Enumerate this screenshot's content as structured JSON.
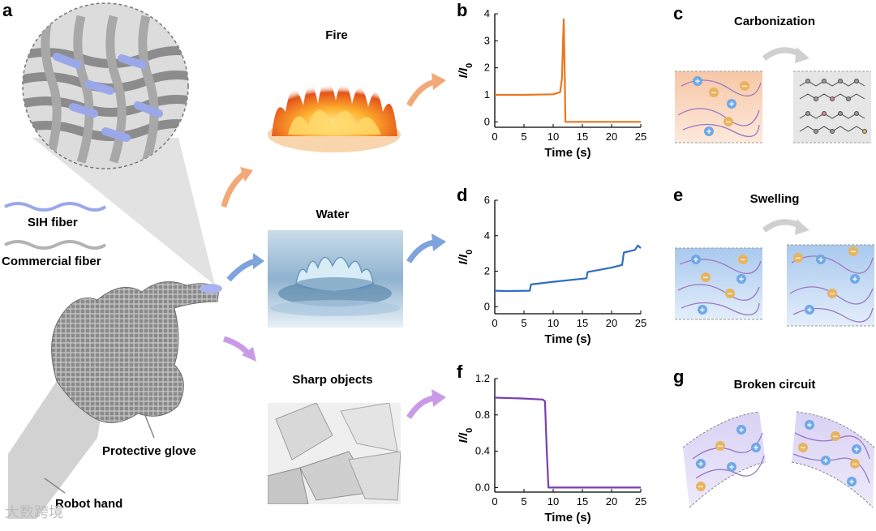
{
  "panel_letters": {
    "a": "a",
    "b": "b",
    "c": "c",
    "d": "d",
    "e": "e",
    "f": "f",
    "g": "g"
  },
  "panel_a": {
    "sih_fiber": "SIH fiber",
    "commercial_fiber": "Commercial fiber",
    "protective_glove": "Protective glove",
    "robot_hand": "Robot hand"
  },
  "scenarios": {
    "fire": "Fire",
    "water": "Water",
    "sharp": "Sharp objects"
  },
  "mechanisms": {
    "carbonization": "Carbonization",
    "swelling": "Swelling",
    "broken_circuit": "Broken circuit"
  },
  "colors": {
    "fire": "#e8771e",
    "water": "#2f6fc0",
    "sharp": "#7a3fb0",
    "fire_arrow": "#f2a877",
    "water_arrow": "#7fa3dc",
    "sharp_arrow": "#c99be6",
    "plus_ion": "#6fa8e8",
    "minus_ion": "#e8b460"
  },
  "watermark": "大数跨境",
  "chart_data": [
    {
      "panel": "b",
      "type": "line",
      "title": "",
      "xlabel": "Time (s)",
      "ylabel": "I/I0",
      "xlim": [
        0,
        25
      ],
      "ylim": [
        -0.2,
        4
      ],
      "xticks": [
        0,
        5,
        10,
        15,
        20,
        25
      ],
      "yticks": [
        0,
        1,
        2,
        3,
        4
      ],
      "series": [
        {
          "name": "Fire",
          "x": [
            0,
            5,
            10,
            11.2,
            11.5,
            11.7,
            11.8,
            12.0,
            12.1,
            15,
            20,
            25
          ],
          "y": [
            1.0,
            1.0,
            1.02,
            1.1,
            1.6,
            3.0,
            3.8,
            1.5,
            0.0,
            0.0,
            0.0,
            0.0
          ]
        }
      ]
    },
    {
      "panel": "d",
      "type": "line",
      "title": "",
      "xlabel": "Time (s)",
      "ylabel": "I/I0",
      "xlim": [
        0,
        25
      ],
      "ylim": [
        -0.4,
        6
      ],
      "xticks": [
        0,
        5,
        10,
        15,
        20,
        25
      ],
      "yticks": [
        0,
        2,
        4,
        6
      ],
      "series": [
        {
          "name": "Water",
          "x": [
            0,
            2,
            6,
            6.2,
            10,
            15.7,
            15.9,
            20,
            21.8,
            22.1,
            24,
            24.5,
            25
          ],
          "y": [
            0.9,
            0.88,
            0.9,
            1.25,
            1.4,
            1.6,
            1.95,
            2.2,
            2.35,
            3.05,
            3.2,
            3.45,
            3.3
          ]
        }
      ]
    },
    {
      "panel": "f",
      "type": "line",
      "title": "",
      "xlabel": "Time (s)",
      "ylabel": "I/I0",
      "xlim": [
        0,
        25
      ],
      "ylim": [
        -0.05,
        1.2
      ],
      "xticks": [
        0,
        5,
        10,
        15,
        20,
        25
      ],
      "yticks": [
        0.0,
        0.4,
        0.8,
        1.2
      ],
      "ytick_labels": [
        "0.0",
        "0.4",
        "0.8",
        "1.2"
      ],
      "series": [
        {
          "name": "Sharp objects",
          "x": [
            0,
            5,
            8.2,
            8.6,
            8.9,
            9.2,
            10,
            15,
            20,
            25
          ],
          "y": [
            0.99,
            0.98,
            0.97,
            0.95,
            0.4,
            0.0,
            0.0,
            0.0,
            0.0,
            0.0
          ]
        }
      ]
    }
  ]
}
